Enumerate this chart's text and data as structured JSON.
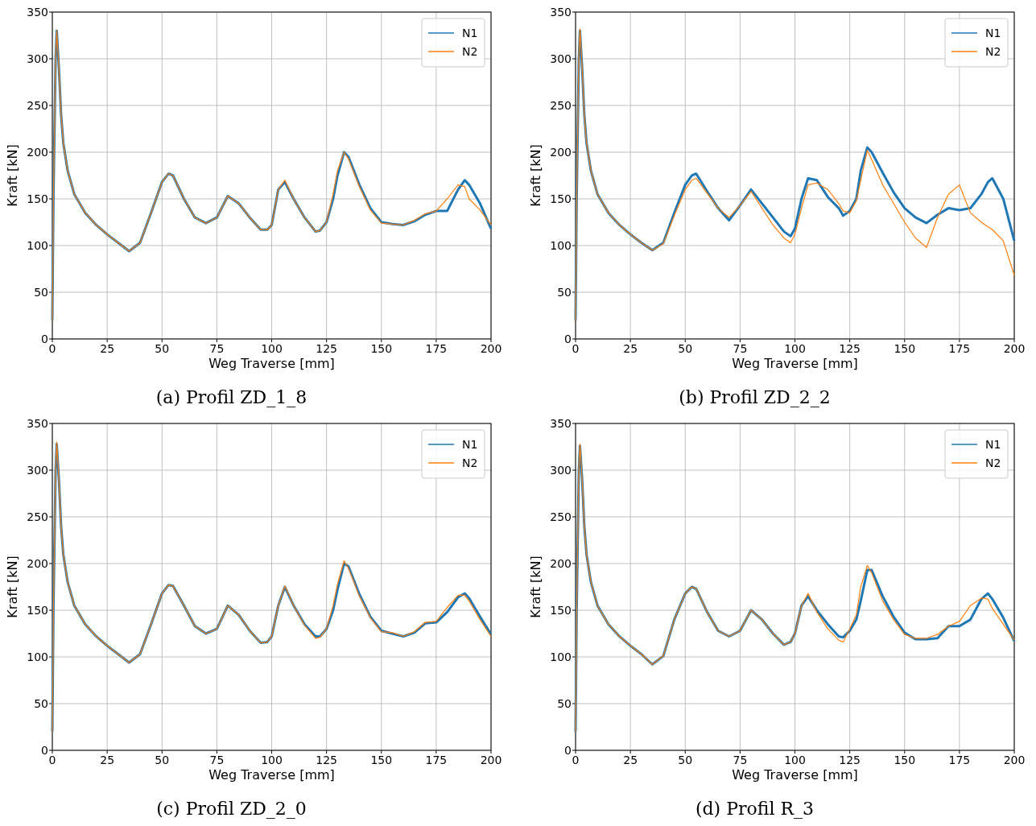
{
  "chart_data": [
    {
      "type": "line",
      "title": "(a) Profil ZD_1_8",
      "xlabel": "Weg Traverse [mm]",
      "ylabel": "Kraft [kN]",
      "xlim": [
        0,
        200
      ],
      "ylim": [
        0,
        350
      ],
      "xticks": [
        0,
        25,
        50,
        75,
        100,
        125,
        150,
        175,
        200
      ],
      "yticks": [
        0,
        50,
        100,
        150,
        200,
        250,
        300,
        350
      ],
      "grid": true,
      "legend": "top right",
      "x": [
        0,
        0.5,
        1.5,
        2,
        3,
        4,
        5,
        7,
        10,
        15,
        20,
        25,
        30,
        35,
        40,
        45,
        50,
        53,
        55,
        60,
        65,
        70,
        75,
        80,
        85,
        90,
        95,
        98,
        100,
        103,
        106,
        110,
        115,
        120,
        122,
        125,
        128,
        130,
        133,
        135,
        140,
        145,
        150,
        155,
        160,
        165,
        170,
        175,
        180,
        185,
        188,
        190,
        195,
        200
      ],
      "series": [
        {
          "name": "N1",
          "color": "#1f77b4",
          "values": [
            20,
            150,
            300,
            330,
            290,
            240,
            210,
            180,
            155,
            135,
            122,
            112,
            103,
            94,
            103,
            135,
            168,
            177,
            175,
            150,
            130,
            124,
            130,
            153,
            145,
            130,
            117,
            117,
            122,
            160,
            168,
            150,
            130,
            115,
            116,
            125,
            150,
            175,
            200,
            195,
            165,
            140,
            125,
            123,
            122,
            126,
            133,
            137,
            137,
            160,
            170,
            165,
            145,
            118
          ]
        },
        {
          "name": "N2",
          "color": "#ff7f0e",
          "values": [
            20,
            150,
            300,
            330,
            290,
            240,
            210,
            180,
            155,
            135,
            122,
            112,
            103,
            94,
            103,
            135,
            168,
            177,
            175,
            150,
            130,
            124,
            130,
            153,
            145,
            130,
            117,
            117,
            122,
            160,
            170,
            150,
            130,
            115,
            116,
            125,
            155,
            180,
            200,
            193,
            163,
            138,
            124,
            123,
            122,
            127,
            134,
            137,
            150,
            165,
            163,
            150,
            138,
            122
          ]
        }
      ]
    },
    {
      "type": "line",
      "title": "(b) Profil ZD_2_2",
      "xlabel": "Weg Traverse [mm]",
      "ylabel": "Kraft [kN]",
      "xlim": [
        0,
        200
      ],
      "ylim": [
        0,
        350
      ],
      "xticks": [
        0,
        25,
        50,
        75,
        100,
        125,
        150,
        175,
        200
      ],
      "yticks": [
        0,
        50,
        100,
        150,
        200,
        250,
        300,
        350
      ],
      "grid": true,
      "legend": "top right",
      "x": [
        0,
        0.5,
        1.5,
        2,
        3,
        4,
        5,
        7,
        10,
        15,
        20,
        25,
        30,
        35,
        40,
        45,
        50,
        53,
        55,
        60,
        65,
        70,
        75,
        80,
        85,
        90,
        95,
        98,
        100,
        103,
        106,
        110,
        115,
        120,
        122,
        125,
        128,
        130,
        133,
        135,
        140,
        145,
        150,
        155,
        160,
        165,
        170,
        175,
        180,
        185,
        188,
        190,
        195,
        200
      ],
      "series": [
        {
          "name": "N1",
          "color": "#1f77b4",
          "values": [
            20,
            150,
            300,
            330,
            290,
            240,
            210,
            180,
            155,
            135,
            122,
            112,
            103,
            95,
            103,
            135,
            165,
            175,
            177,
            158,
            140,
            127,
            143,
            160,
            145,
            130,
            115,
            110,
            118,
            150,
            172,
            170,
            152,
            140,
            132,
            137,
            150,
            180,
            205,
            200,
            178,
            157,
            140,
            130,
            124,
            133,
            140,
            138,
            140,
            155,
            168,
            172,
            150,
            105
          ]
        },
        {
          "name": "N2",
          "color": "#ff7f0e",
          "values": [
            20,
            150,
            300,
            332,
            290,
            240,
            210,
            180,
            155,
            135,
            122,
            112,
            103,
            95,
            102,
            132,
            160,
            170,
            172,
            156,
            140,
            130,
            143,
            158,
            140,
            122,
            108,
            103,
            112,
            140,
            165,
            167,
            160,
            145,
            137,
            135,
            148,
            170,
            202,
            192,
            165,
            145,
            125,
            108,
            98,
            130,
            155,
            165,
            135,
            125,
            120,
            117,
            105,
            68
          ]
        }
      ]
    },
    {
      "type": "line",
      "title": "(c) Profil ZD_2_0",
      "xlabel": "Weg Traverse [mm]",
      "ylabel": "Kraft [kN]",
      "xlim": [
        0,
        200
      ],
      "ylim": [
        0,
        350
      ],
      "xticks": [
        0,
        25,
        50,
        75,
        100,
        125,
        150,
        175,
        200
      ],
      "yticks": [
        0,
        50,
        100,
        150,
        200,
        250,
        300,
        350
      ],
      "grid": true,
      "legend": "top right",
      "x": [
        0,
        0.5,
        1.5,
        2,
        3,
        4,
        5,
        7,
        10,
        15,
        20,
        25,
        30,
        35,
        40,
        45,
        50,
        53,
        55,
        60,
        65,
        70,
        75,
        80,
        85,
        90,
        95,
        98,
        100,
        103,
        106,
        110,
        115,
        120,
        122,
        125,
        128,
        130,
        133,
        135,
        140,
        145,
        150,
        155,
        160,
        165,
        170,
        175,
        180,
        185,
        188,
        190,
        195,
        200
      ],
      "series": [
        {
          "name": "N1",
          "color": "#1f77b4",
          "values": [
            20,
            150,
            300,
            328,
            290,
            240,
            210,
            180,
            155,
            135,
            122,
            112,
            103,
            94,
            103,
            135,
            168,
            177,
            176,
            155,
            133,
            125,
            130,
            155,
            145,
            128,
            115,
            116,
            122,
            155,
            175,
            155,
            135,
            122,
            122,
            130,
            150,
            172,
            200,
            197,
            167,
            143,
            128,
            125,
            122,
            126,
            136,
            137,
            148,
            164,
            168,
            163,
            143,
            124
          ]
        },
        {
          "name": "N2",
          "color": "#ff7f0e",
          "values": [
            20,
            150,
            300,
            330,
            290,
            240,
            210,
            180,
            155,
            135,
            122,
            112,
            103,
            94,
            103,
            135,
            168,
            177,
            176,
            155,
            133,
            125,
            130,
            155,
            145,
            128,
            115,
            116,
            122,
            155,
            176,
            155,
            134,
            120,
            121,
            130,
            155,
            178,
            203,
            195,
            165,
            142,
            127,
            126,
            122,
            127,
            137,
            138,
            153,
            166,
            166,
            160,
            140,
            122
          ]
        }
      ]
    },
    {
      "type": "line",
      "title": "(d) Profil R_3",
      "xlabel": "Weg Traverse [mm]",
      "ylabel": "Kraft [kN]",
      "xlim": [
        0,
        200
      ],
      "ylim": [
        0,
        350
      ],
      "xticks": [
        0,
        25,
        50,
        75,
        100,
        125,
        150,
        175,
        200
      ],
      "yticks": [
        0,
        50,
        100,
        150,
        200,
        250,
        300,
        350
      ],
      "grid": true,
      "legend": "top right",
      "x": [
        0,
        0.5,
        1.5,
        2,
        3,
        4,
        5,
        7,
        10,
        15,
        20,
        25,
        30,
        35,
        40,
        45,
        50,
        53,
        55,
        60,
        65,
        70,
        75,
        80,
        85,
        90,
        95,
        98,
        100,
        103,
        106,
        110,
        115,
        120,
        122,
        125,
        128,
        130,
        133,
        135,
        140,
        145,
        150,
        155,
        160,
        165,
        170,
        175,
        180,
        185,
        188,
        190,
        195,
        200
      ],
      "series": [
        {
          "name": "N1",
          "color": "#1f77b4",
          "values": [
            20,
            150,
            300,
            326,
            290,
            240,
            210,
            180,
            155,
            135,
            122,
            112,
            103,
            92,
            101,
            140,
            168,
            175,
            173,
            148,
            128,
            122,
            128,
            150,
            140,
            125,
            113,
            116,
            125,
            155,
            165,
            150,
            135,
            122,
            121,
            128,
            140,
            160,
            193,
            193,
            165,
            143,
            126,
            119,
            119,
            120,
            133,
            133,
            140,
            162,
            168,
            162,
            142,
            117
          ]
        },
        {
          "name": "N2",
          "color": "#ff7f0e",
          "values": [
            20,
            150,
            300,
            328,
            290,
            240,
            210,
            180,
            155,
            135,
            122,
            112,
            103,
            92,
            101,
            140,
            168,
            175,
            173,
            148,
            128,
            122,
            128,
            150,
            140,
            125,
            113,
            116,
            125,
            155,
            168,
            148,
            130,
            118,
            116,
            130,
            145,
            175,
            198,
            190,
            160,
            140,
            124,
            120,
            120,
            124,
            133,
            138,
            155,
            163,
            162,
            152,
            135,
            118
          ]
        }
      ]
    }
  ]
}
